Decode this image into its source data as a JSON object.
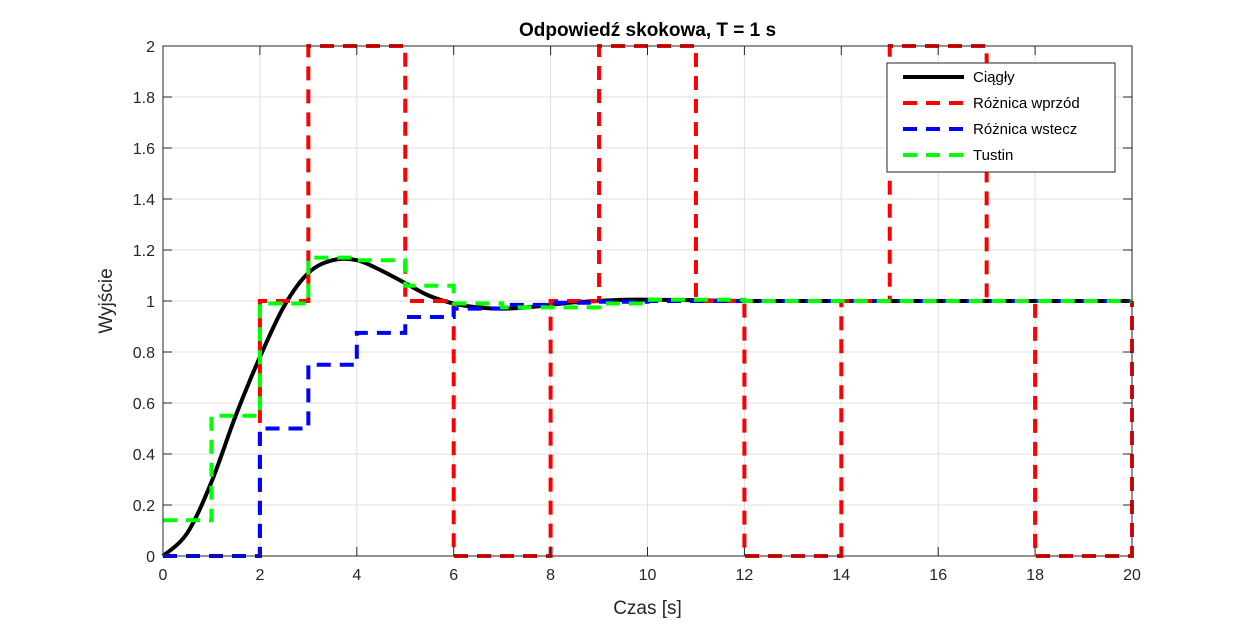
{
  "chart_data": {
    "type": "line",
    "title": "Odpowiedź skokowa, T = 1 s",
    "xlabel": "Czas [s]",
    "ylabel": "Wyjście",
    "xlim": [
      0,
      20
    ],
    "ylim": [
      0,
      2
    ],
    "xticks": [
      0,
      2,
      4,
      6,
      8,
      10,
      12,
      14,
      16,
      18,
      20
    ],
    "yticks": [
      0,
      0.2,
      0.4,
      0.6,
      0.8,
      1,
      1.2,
      1.4,
      1.6,
      1.8,
      2
    ],
    "grid": true,
    "legend_position": "top-right",
    "series": [
      {
        "name": "Ciągły",
        "kind": "continuous",
        "color": "#000000",
        "style": "solid",
        "x": [
          0,
          0.5,
          1,
          1.5,
          2,
          2.5,
          3,
          3.5,
          4,
          4.5,
          5,
          5.5,
          6,
          6.5,
          7,
          7.5,
          8,
          8.5,
          9,
          9.5,
          10,
          11,
          12,
          13,
          14,
          15,
          16,
          17,
          18,
          19,
          20
        ],
        "y": [
          0,
          0.09,
          0.29,
          0.55,
          0.78,
          0.98,
          1.11,
          1.16,
          1.16,
          1.12,
          1.07,
          1.02,
          0.99,
          0.975,
          0.97,
          0.975,
          0.985,
          0.995,
          1.0,
          1.005,
          1.005,
          1.003,
          1.0,
          1.0,
          1.0,
          1.0,
          1.0,
          1.0,
          1.0,
          1.0,
          1.0
        ]
      },
      {
        "name": "Różnica wprzód",
        "kind": "stairs",
        "color": "#ff0000",
        "style": "dashed",
        "x": [
          0,
          1,
          2,
          3,
          4,
          5,
          6,
          7,
          8,
          9,
          10,
          11,
          12,
          13,
          14,
          15,
          16,
          17,
          18,
          19,
          20
        ],
        "y": [
          0,
          0,
          1,
          2,
          2,
          1,
          0,
          0,
          1,
          2,
          2,
          1,
          0,
          0,
          1,
          2,
          2,
          1,
          0,
          0,
          1
        ]
      },
      {
        "name": "Różnica wstecz",
        "kind": "stairs",
        "color": "#0000ff",
        "style": "dashed",
        "x": [
          0,
          1,
          2,
          3,
          4,
          5,
          6,
          7,
          8,
          9,
          10,
          11,
          12,
          13,
          14,
          15,
          16,
          17,
          18,
          19,
          20
        ],
        "y": [
          0,
          0,
          0.5,
          0.75,
          0.875,
          0.9375,
          0.97,
          0.985,
          0.993,
          0.997,
          1,
          1,
          1,
          1,
          1,
          1,
          1,
          1,
          1,
          1,
          1
        ]
      },
      {
        "name": "Tustin",
        "kind": "stairs",
        "color": "#00ff00",
        "style": "dashed",
        "x": [
          0,
          1,
          2,
          3,
          4,
          5,
          6,
          7,
          8,
          9,
          10,
          11,
          12,
          13,
          14,
          15,
          16,
          17,
          18,
          19,
          20
        ],
        "y": [
          0.14,
          0.55,
          0.99,
          1.17,
          1.16,
          1.06,
          0.99,
          0.975,
          0.975,
          0.99,
          1.005,
          1.005,
          1.0,
          1.0,
          1.0,
          1.0,
          1.0,
          1.0,
          1.0,
          1.0,
          1.0
        ]
      }
    ]
  }
}
